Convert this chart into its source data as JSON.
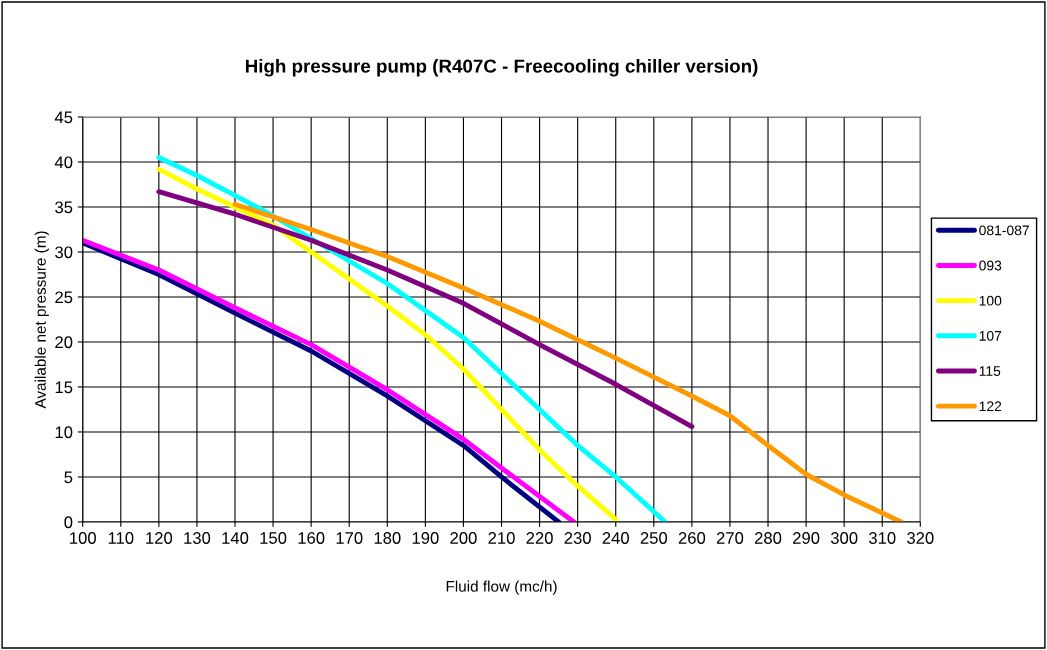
{
  "chart_data": {
    "type": "line",
    "title": "High pressure pump (R407C - Freecooling chiller version)",
    "xlabel": "Fluid flow (mc/h)",
    "ylabel": "Available net pressure (m)",
    "xlim": [
      100,
      320
    ],
    "xticks": [
      100,
      110,
      120,
      130,
      140,
      150,
      160,
      170,
      180,
      190,
      200,
      210,
      220,
      230,
      240,
      250,
      260,
      270,
      280,
      290,
      300,
      310,
      320
    ],
    "ylim": [
      0,
      45
    ],
    "yticks": [
      0,
      5,
      10,
      15,
      20,
      25,
      30,
      35,
      40,
      45
    ],
    "grid": true,
    "legend": "right",
    "marker": "none",
    "line_style": "solid",
    "series": [
      {
        "name": "081-087",
        "color": "#000080",
        "x": [
          100,
          120,
          140,
          160,
          180,
          200,
          210,
          225
        ],
        "values": [
          31,
          27.5,
          23.2,
          19,
          14,
          8.5,
          5,
          0
        ]
      },
      {
        "name": "093",
        "color": "#ff00ff",
        "x": [
          100,
          120,
          140,
          160,
          180,
          200,
          210,
          229
        ],
        "values": [
          31.3,
          28,
          23.8,
          19.7,
          14.7,
          9.2,
          6,
          0
        ]
      },
      {
        "name": "100",
        "color": "#ffff00",
        "x": [
          120,
          130,
          140,
          150,
          160,
          170,
          180,
          190,
          200,
          210,
          220,
          230,
          240
        ],
        "values": [
          39.2,
          37,
          35,
          33,
          30,
          27,
          24,
          20.8,
          17,
          12.5,
          8,
          4,
          0.3
        ]
      },
      {
        "name": "107",
        "color": "#00ffff",
        "x": [
          120,
          130,
          140,
          150,
          160,
          170,
          180,
          190,
          200,
          210,
          220,
          230,
          240,
          253
        ],
        "values": [
          40.5,
          38.5,
          36.3,
          34,
          31.5,
          29,
          26.5,
          23.5,
          20.5,
          16.5,
          12.5,
          8.5,
          5,
          0
        ]
      },
      {
        "name": "115",
        "color": "#800080",
        "x": [
          120,
          140,
          160,
          180,
          200,
          220,
          240,
          260
        ],
        "values": [
          36.7,
          34.2,
          31.3,
          28,
          24.3,
          19.7,
          15.3,
          10.6
        ]
      },
      {
        "name": "122",
        "color": "#ff9900",
        "x": [
          140,
          160,
          180,
          200,
          220,
          240,
          260,
          270,
          280,
          290,
          300,
          315
        ],
        "values": [
          35.3,
          32.5,
          29.5,
          26,
          22.3,
          18.2,
          14,
          11.8,
          8.5,
          5.3,
          3,
          0
        ]
      }
    ]
  }
}
